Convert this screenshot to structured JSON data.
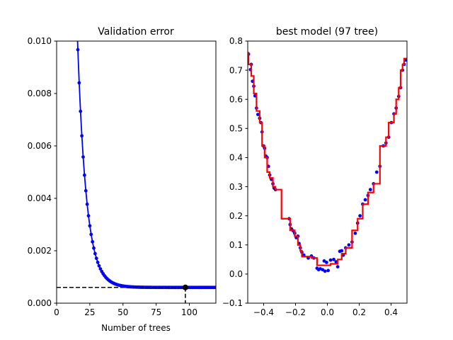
{
  "chart_data": [
    {
      "type": "line",
      "title": "Validation error",
      "xlabel": "Number of trees",
      "ylabel": "",
      "xlim": [
        0,
        120
      ],
      "ylim": [
        0,
        0.01
      ],
      "xticks": [
        0,
        25,
        50,
        75,
        100
      ],
      "xtick_labels": [
        "0",
        "25",
        "50",
        "75",
        "100"
      ],
      "yticks": [
        0,
        0.002,
        0.004,
        0.006,
        0.008,
        0.01
      ],
      "ytick_labels": [
        "0.000",
        "0.002",
        "0.004",
        "0.006",
        "0.008",
        "0.010"
      ],
      "grid": false,
      "legend": "none",
      "series_color": "#0000ff",
      "marker_color": "#0000ff",
      "best_point": {
        "x": 97,
        "y": 0.0006,
        "color": "#000000"
      },
      "reference_line_style": "dashed",
      "reference_color": "#000000",
      "error_curve": {
        "x_start": 1,
        "x_end": 120,
        "step": 1,
        "initial_error": 0.1,
        "decay_rate": 0.15,
        "floor": 0.0006
      }
    },
    {
      "type": "scatter",
      "title": "best model (97 tree)",
      "xlabel": "",
      "ylabel": "",
      "xlim": [
        -0.5,
        0.5
      ],
      "ylim": [
        -0.1,
        0.8
      ],
      "xticks": [
        -0.4,
        -0.2,
        0.0,
        0.2,
        0.4
      ],
      "xtick_labels": [
        "−0.4",
        "−0.2",
        "0.0",
        "0.2",
        "0.4"
      ],
      "yticks": [
        -0.1,
        0.0,
        0.1,
        0.2,
        0.3,
        0.4,
        0.5,
        0.6,
        0.7,
        0.8
      ],
      "ytick_labels": [
        "−0.1",
        "0.0",
        "0.1",
        "0.2",
        "0.3",
        "0.4",
        "0.5",
        "0.6",
        "0.7",
        "0.8"
      ],
      "grid": false,
      "legend": "none",
      "point_color": "#0000ff",
      "step_color": "#ff0000",
      "points": [
        [
          -0.495,
          0.755
        ],
        [
          -0.483,
          0.702
        ],
        [
          -0.478,
          0.72
        ],
        [
          -0.47,
          0.662
        ],
        [
          -0.462,
          0.645
        ],
        [
          -0.454,
          0.612
        ],
        [
          -0.445,
          0.57
        ],
        [
          -0.436,
          0.548
        ],
        [
          -0.425,
          0.535
        ],
        [
          -0.417,
          0.52
        ],
        [
          -0.41,
          0.488
        ],
        [
          -0.401,
          0.44
        ],
        [
          -0.394,
          0.432
        ],
        [
          -0.386,
          0.405
        ],
        [
          -0.378,
          0.4
        ],
        [
          -0.37,
          0.37
        ],
        [
          -0.362,
          0.34
        ],
        [
          -0.351,
          0.325
        ],
        [
          -0.342,
          0.31
        ],
        [
          -0.334,
          0.295
        ],
        [
          -0.326,
          0.29
        ],
        [
          -0.24,
          0.19
        ],
        [
          -0.234,
          0.17
        ],
        [
          -0.225,
          0.155
        ],
        [
          -0.214,
          0.148
        ],
        [
          -0.205,
          0.14
        ],
        [
          -0.195,
          0.125
        ],
        [
          -0.185,
          0.13
        ],
        [
          -0.178,
          0.105
        ],
        [
          -0.17,
          0.09
        ],
        [
          -0.16,
          0.075
        ],
        [
          -0.148,
          0.065
        ],
        [
          -0.12,
          0.055
        ],
        [
          -0.1,
          0.062
        ],
        [
          -0.085,
          0.055
        ],
        [
          -0.065,
          0.02
        ],
        [
          -0.055,
          0.015
        ],
        [
          -0.045,
          0.018
        ],
        [
          -0.03,
          0.015
        ],
        [
          -0.02,
          0.045
        ],
        [
          -0.015,
          0.01
        ],
        [
          -0.005,
          0.04
        ],
        [
          0.005,
          0.012
        ],
        [
          0.02,
          0.048
        ],
        [
          0.04,
          0.05
        ],
        [
          0.055,
          0.042
        ],
        [
          0.065,
          0.025
        ],
        [
          0.078,
          0.078
        ],
        [
          0.09,
          0.08
        ],
        [
          0.1,
          0.065
        ],
        [
          0.115,
          0.09
        ],
        [
          0.135,
          0.1
        ],
        [
          0.155,
          0.11
        ],
        [
          0.175,
          0.14
        ],
        [
          0.19,
          0.175
        ],
        [
          0.205,
          0.2
        ],
        [
          0.222,
          0.24
        ],
        [
          0.238,
          0.255
        ],
        [
          0.255,
          0.27
        ],
        [
          0.27,
          0.29
        ],
        [
          0.29,
          0.31
        ],
        [
          0.31,
          0.35
        ],
        [
          0.33,
          0.37
        ],
        [
          0.352,
          0.44
        ],
        [
          0.368,
          0.45
        ],
        [
          0.385,
          0.47
        ],
        [
          0.402,
          0.52
        ],
        [
          0.418,
          0.55
        ],
        [
          0.432,
          0.57
        ],
        [
          0.448,
          0.61
        ],
        [
          0.46,
          0.64
        ],
        [
          0.472,
          0.7
        ],
        [
          0.482,
          0.72
        ],
        [
          0.492,
          0.735
        ]
      ],
      "step_model": [
        [
          -0.5,
          0.76
        ],
        [
          -0.495,
          0.76
        ],
        [
          -0.495,
          0.72
        ],
        [
          -0.478,
          0.72
        ],
        [
          -0.478,
          0.68
        ],
        [
          -0.462,
          0.68
        ],
        [
          -0.462,
          0.62
        ],
        [
          -0.445,
          0.62
        ],
        [
          -0.445,
          0.56
        ],
        [
          -0.425,
          0.56
        ],
        [
          -0.425,
          0.52
        ],
        [
          -0.41,
          0.52
        ],
        [
          -0.41,
          0.44
        ],
        [
          -0.394,
          0.44
        ],
        [
          -0.394,
          0.4
        ],
        [
          -0.378,
          0.4
        ],
        [
          -0.378,
          0.35
        ],
        [
          -0.362,
          0.35
        ],
        [
          -0.362,
          0.33
        ],
        [
          -0.342,
          0.33
        ],
        [
          -0.342,
          0.3
        ],
        [
          -0.326,
          0.3
        ],
        [
          -0.326,
          0.29
        ],
        [
          -0.288,
          0.29
        ],
        [
          -0.288,
          0.19
        ],
        [
          -0.234,
          0.19
        ],
        [
          -0.234,
          0.15
        ],
        [
          -0.205,
          0.15
        ],
        [
          -0.205,
          0.13
        ],
        [
          -0.185,
          0.13
        ],
        [
          -0.185,
          0.1
        ],
        [
          -0.17,
          0.1
        ],
        [
          -0.17,
          0.08
        ],
        [
          -0.16,
          0.08
        ],
        [
          -0.16,
          0.06
        ],
        [
          -0.1,
          0.06
        ],
        [
          -0.1,
          0.055
        ],
        [
          -0.065,
          0.055
        ],
        [
          -0.065,
          0.03
        ],
        [
          0.02,
          0.03
        ],
        [
          0.02,
          0.035
        ],
        [
          0.065,
          0.035
        ],
        [
          0.065,
          0.05
        ],
        [
          0.09,
          0.05
        ],
        [
          0.09,
          0.07
        ],
        [
          0.115,
          0.07
        ],
        [
          0.115,
          0.09
        ],
        [
          0.155,
          0.09
        ],
        [
          0.155,
          0.15
        ],
        [
          0.19,
          0.15
        ],
        [
          0.19,
          0.19
        ],
        [
          0.222,
          0.19
        ],
        [
          0.222,
          0.24
        ],
        [
          0.255,
          0.24
        ],
        [
          0.255,
          0.28
        ],
        [
          0.29,
          0.28
        ],
        [
          0.29,
          0.31
        ],
        [
          0.33,
          0.31
        ],
        [
          0.33,
          0.44
        ],
        [
          0.368,
          0.44
        ],
        [
          0.368,
          0.47
        ],
        [
          0.385,
          0.47
        ],
        [
          0.385,
          0.52
        ],
        [
          0.418,
          0.52
        ],
        [
          0.418,
          0.55
        ],
        [
          0.432,
          0.55
        ],
        [
          0.432,
          0.6
        ],
        [
          0.448,
          0.6
        ],
        [
          0.448,
          0.64
        ],
        [
          0.46,
          0.64
        ],
        [
          0.46,
          0.7
        ],
        [
          0.472,
          0.7
        ],
        [
          0.472,
          0.72
        ],
        [
          0.482,
          0.72
        ],
        [
          0.482,
          0.74
        ],
        [
          0.5,
          0.74
        ]
      ]
    }
  ]
}
